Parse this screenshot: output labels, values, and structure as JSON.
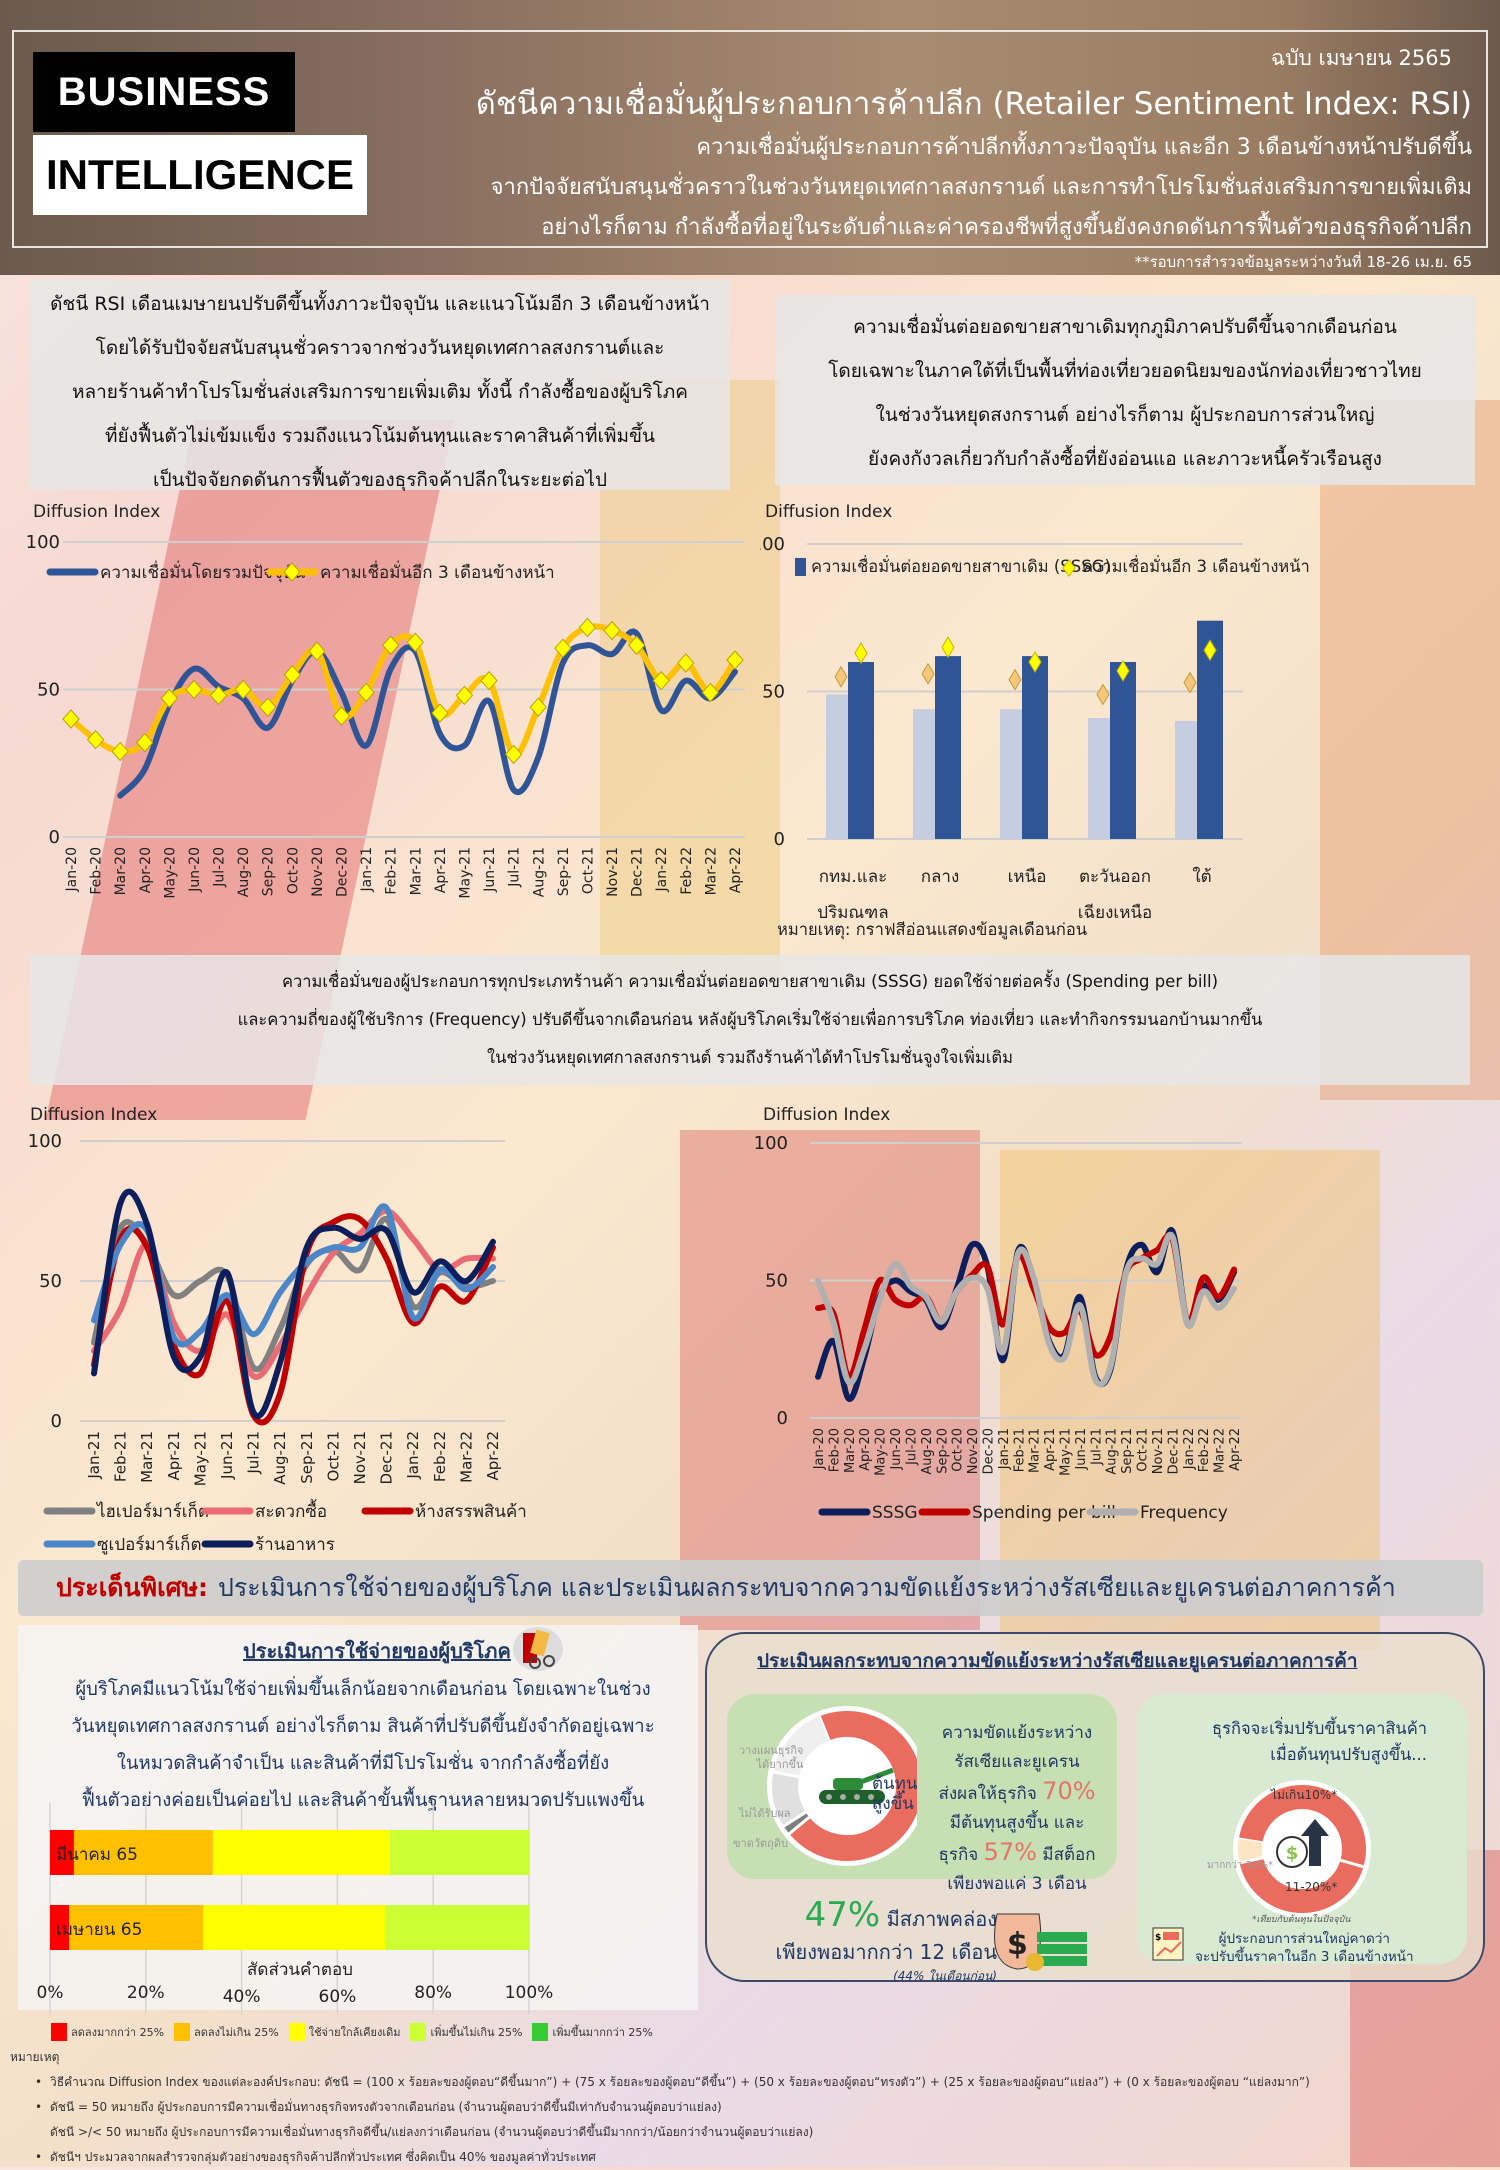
{
  "header": {
    "logo_line1": "BUSINESS",
    "logo_line2": "INTELLIGENCE",
    "issue": "ฉบับ เมษายน 2565",
    "title": "ดัชนีความเชื่อมั่นผู้ประกอบการค้าปลีก (Retailer Sentiment Index: RSI)",
    "subtitle_lines": [
      "ความเชื่อมั่นผู้ประกอบการค้าปลีกทั้งภาวะปัจจุบัน และอีก 3 เดือนข้างหน้าปรับดีขึ้น",
      "จากปัจจัยสนับสนุนชั่วคราวในช่วงวันหยุดเทศกาลสงกรานต์ และการทำโปรโมชั่นส่งเสริมการขายเพิ่มเติม",
      "อย่างไรก็ตาม กำลังซื้อที่อยู่ในระดับต่ำและค่าครองชีพที่สูงขึ้นยังคงกดดันการฟื้นตัวของธุรกิจค้าปลีก"
    ],
    "survey_note": "**รอบการสำรวจข้อมูลระหว่างวันที่ 18-26 เม.ย. 65"
  },
  "panels": {
    "rsi_summary": [
      "ดัชนี RSI เดือนเมษายนปรับดีขึ้นทั้งภาวะปัจจุบัน และแนวโน้มอีก 3 เดือนข้างหน้า",
      "โดยได้รับปัจจัยสนับสนุนชั่วคราวจากช่วงวันหยุดเทศกาลสงกรานต์และ",
      "หลายร้านค้าทำโปรโมชั่นส่งเสริมการขายเพิ่มเติม ทั้งนี้ กำลังซื้อของผู้บริโภค",
      "ที่ยังฟื้นตัวไม่เข้มแข็ง รวมถึงแนวโน้มต้นทุนและราคาสินค้าที่เพิ่มขึ้น",
      "เป็นปัจจัยกดดันการฟื้นตัวของธุรกิจค้าปลีกในระยะต่อไป"
    ],
    "regional_summary": [
      "ความเชื่อมั่นต่อยอดขายสาขาเดิมทุกภูมิภาคปรับดีขึ้นจากเดือนก่อน",
      "โดยเฉพาะในภาคใต้ที่เป็นพื้นที่ท่องเที่ยวยอดนิยมของนักท่องเที่ยวชาวไทย",
      "ในช่วงวันหยุดสงกรานต์ อย่างไรก็ตาม ผู้ประกอบการส่วนใหญ่",
      "ยังคงกังวลเกี่ยวกับกำลังซื้อที่ยังอ่อนแอ และภาวะหนี้ครัวเรือนสูง"
    ],
    "store_summary": [
      "ความเชื่อมั่นของผู้ประกอบการทุกประเภทร้านค้า ความเชื่อมั่นต่อยอดขายสาขาเดิม (SSSG) ยอดใช้จ่ายต่อครั้ง (Spending  per bill)",
      "และความถี่ของผู้ใช้บริการ (Frequency) ปรับดีขึ้นจากเดือนก่อน หลังผู้บริโภคเริ่มใช้จ่ายเพื่อการบริโภค ท่องเที่ยว และทำกิจกรรมนอกบ้านมากขึ้น",
      "ในช่วงวันหยุดเทศกาลสงกรานต์  รวมถึงร้านค้าได้ทำโปรโมชั่นจูงใจเพิ่มเติม"
    ]
  },
  "chart_data": [
    {
      "id": "rsi_line",
      "type": "line",
      "ylabel": "Diffusion Index",
      "ylim": [
        0,
        100
      ],
      "yticks": [
        0,
        50,
        100
      ],
      "grid": true,
      "legend_position": "top",
      "categories": [
        "Jan-20",
        "Feb-20",
        "Mar-20",
        "Apr-20",
        "May-20",
        "Jun-20",
        "Jul-20",
        "Aug-20",
        "Sep-20",
        "Oct-20",
        "Nov-20",
        "Dec-20",
        "Jan-21",
        "Feb-21",
        "Mar-21",
        "Apr-21",
        "May-21",
        "Jun-21",
        "Jul-21",
        "Aug-21",
        "Sep-21",
        "Oct-21",
        "Nov-21",
        "Dec-21",
        "Jan-22",
        "Feb-22",
        "Mar-22",
        "Apr-22"
      ],
      "series": [
        {
          "name": "ความเชื่อมั่นโดยรวมปัจจุบัน",
          "color": "#2f5597",
          "values": [
            null,
            null,
            14,
            23,
            45,
            57,
            51,
            47,
            37,
            53,
            63,
            49,
            31,
            57,
            63,
            35,
            31,
            46,
            16,
            27,
            59,
            65,
            62,
            69,
            43,
            53,
            47,
            56
          ]
        },
        {
          "name": "ความเชื่อมั่นอีก 3 เดือนข้างหน้า",
          "color": "#ffc000",
          "marker": "diamond",
          "values": [
            40,
            33,
            29,
            32,
            47,
            50,
            48,
            50,
            44,
            55,
            63,
            41,
            49,
            65,
            66,
            42,
            48,
            53,
            28,
            44,
            64,
            71,
            70,
            65,
            53,
            59,
            49,
            60
          ]
        }
      ]
    },
    {
      "id": "regional_bar",
      "type": "bar",
      "ylabel": "Diffusion Index",
      "ylim": [
        0,
        100
      ],
      "yticks": [
        0,
        50,
        100
      ],
      "grid": true,
      "legend_position": "top",
      "categories": [
        "กทม.และปริมณฑล",
        "กลาง",
        "เหนือ",
        "ตะวันออกเฉียงเหนือ",
        "ใต้"
      ],
      "category_lines": [
        [
          "กทม.และ",
          "ปริมณฑล"
        ],
        [
          "กลาง"
        ],
        [
          "เหนือ"
        ],
        [
          "ตะวันออก",
          "เฉียงเหนือ"
        ],
        [
          "ใต้"
        ]
      ],
      "series": [
        {
          "name": "ความเชื่อมั่นต่อยอดขายสาขาเดิม (SSSG) - เดือนก่อน",
          "color": "#c5cde0",
          "values": [
            49,
            44,
            44,
            41,
            40
          ]
        },
        {
          "name": "ความเชื่อมั่นต่อยอดขายสาขาเดิม (SSSG)",
          "color": "#2f5597",
          "values": [
            60,
            62,
            62,
            60,
            74
          ]
        },
        {
          "name": "ความเชื่อมั่นอีก 3 เดือนข้างหน้า - เดือนก่อน",
          "color": "#f4c77a",
          "marker": "diamond",
          "values": [
            55,
            56,
            54,
            49,
            53
          ]
        },
        {
          "name": "ความเชื่อมั่นอีก 3 เดือนข้างหน้า",
          "color": "#ffff00",
          "marker": "diamond",
          "values": [
            63,
            65,
            60,
            57,
            64
          ]
        }
      ],
      "legend": [
        "ความเชื่อมั่นต่อยอดขายสาขาเดิม (SSSG)",
        "ความเชื่อมั่นอีก 3 เดือนข้างหน้า"
      ],
      "note": "หมายเหตุ: กราฟสีอ่อนแสดงข้อมูลเดือนก่อน"
    },
    {
      "id": "store_type_line",
      "type": "line",
      "ylabel": "Diffusion Index",
      "ylim": [
        0,
        100
      ],
      "yticks": [
        0,
        50,
        100
      ],
      "grid": true,
      "legend_position": "bottom",
      "categories": [
        "Jan-21",
        "Feb-21",
        "Mar-21",
        "Apr-21",
        "May-21",
        "Jun-21",
        "Jul-21",
        "Aug-21",
        "Sep-21",
        "Oct-21",
        "Nov-21",
        "Dec-21",
        "Jan-22",
        "Feb-22",
        "Mar-22",
        "Apr-22"
      ],
      "series": [
        {
          "name": "ไฮเปอร์มาร์เก็ต",
          "color": "#808080",
          "values": [
            28,
            69,
            63,
            45,
            50,
            52,
            19,
            33,
            56,
            61,
            54,
            72,
            41,
            53,
            48,
            50
          ]
        },
        {
          "name": "สะดวกซื้อ",
          "color": "#e96c74",
          "values": [
            25,
            40,
            63,
            35,
            25,
            38,
            16,
            27,
            45,
            60,
            67,
            75,
            65,
            54,
            58,
            58
          ]
        },
        {
          "name": "ห้างสรรพสินค้า",
          "color": "#c00000",
          "values": [
            20,
            65,
            62,
            27,
            17,
            43,
            2,
            10,
            60,
            71,
            72,
            58,
            35,
            48,
            43,
            62
          ]
        },
        {
          "name": "ซูเปอร์มาร์เก็ต",
          "color": "#4a86c8",
          "values": [
            36,
            63,
            68,
            30,
            32,
            45,
            31,
            46,
            57,
            62,
            62,
            76,
            37,
            54,
            47,
            55
          ]
        },
        {
          "name": "ร้านอาหาร",
          "color": "#0c1f5c",
          "values": [
            17,
            78,
            70,
            23,
            23,
            53,
            3,
            21,
            62,
            69,
            65,
            68,
            46,
            57,
            50,
            64
          ]
        }
      ]
    },
    {
      "id": "sssg_line",
      "type": "line",
      "ylabel": "Diffusion Index",
      "ylim": [
        0,
        100
      ],
      "yticks": [
        0,
        50,
        100
      ],
      "grid": true,
      "legend_position": "bottom",
      "categories": [
        "Jan-20",
        "Feb-20",
        "Mar-20",
        "Apr-20",
        "May-20",
        "Jun-20",
        "Jul-20",
        "Aug-20",
        "Sep-20",
        "Oct-20",
        "Nov-20",
        "Dec-20",
        "Jan-21",
        "Feb-21",
        "Mar-21",
        "Apr-21",
        "May-21",
        "Jun-21",
        "Jul-21",
        "Aug-21",
        "Sep-21",
        "Oct-21",
        "Nov-21",
        "Dec-21",
        "Jan-22",
        "Feb-22",
        "Mar-22",
        "Apr-22"
      ],
      "series": [
        {
          "name": "SSSG",
          "color": "#0c1f5c",
          "values": [
            15,
            28,
            7,
            22,
            44,
            50,
            46,
            43,
            33,
            47,
            63,
            55,
            21,
            61,
            50,
            28,
            23,
            44,
            15,
            18,
            54,
            63,
            53,
            68,
            34,
            48,
            43,
            53
          ]
        },
        {
          "name": "Spending per bill",
          "color": "#c00000",
          "values": [
            40,
            38,
            15,
            32,
            50,
            43,
            41,
            44,
            35,
            46,
            52,
            55,
            34,
            59,
            47,
            33,
            31,
            39,
            23,
            30,
            53,
            58,
            61,
            65,
            35,
            51,
            44,
            54
          ]
        },
        {
          "name": "Frequency",
          "color": "#b0b0b0",
          "values": [
            50,
            35,
            13,
            25,
            43,
            56,
            48,
            44,
            35,
            46,
            51,
            47,
            24,
            60,
            51,
            27,
            22,
            41,
            14,
            19,
            53,
            58,
            56,
            66,
            34,
            46,
            40,
            47
          ]
        }
      ]
    },
    {
      "id": "consumer_spending_bar",
      "type": "bar",
      "orientation": "horizontal",
      "stacked": true,
      "xlabel": "สัดส่วนคำตอบ",
      "xlim": [
        0,
        100
      ],
      "xticks": [
        "0%",
        "20%",
        "40%",
        "60%",
        "80%",
        "100%"
      ],
      "categories": [
        "มีนาคม 65",
        "เมษายน 65"
      ],
      "series": [
        {
          "name": "ลดลงมากกว่า 25%",
          "color": "#ff0000",
          "values": [
            5,
            4
          ]
        },
        {
          "name": "ลดลงไม่เกิน 25%",
          "color": "#ffc000",
          "values": [
            29,
            28
          ]
        },
        {
          "name": "ใช้จ่ายใกล้เคียงเดิม",
          "color": "#ffff00",
          "values": [
            37,
            38
          ]
        },
        {
          "name": "เพิ่มขึ้นไม่เกิน 25%",
          "color": "#ccff33",
          "values": [
            29,
            30
          ]
        },
        {
          "name": "เพิ่มขึ้นมากกว่า 25%",
          "color": "#33cc33",
          "values": [
            0,
            0
          ]
        }
      ]
    }
  ],
  "special": {
    "label": "ประเด็นพิเศษ:",
    "title": "ประเมินการใช้จ่ายของผู้บริโภค และประเมินผลกระทบจากความขัดแย้งระหว่างรัสเซียและยูเครนต่อภาคการค้า"
  },
  "consumer": {
    "title": "ประเมินการใช้จ่ายของผู้บริโภค",
    "body": [
      "ผู้บริโภคมีแนวโน้มใช้จ่ายเพิ่มขึ้นเล็กน้อยจากเดือนก่อน โดยเฉพาะในช่วง",
      "วันหยุดเทศกาลสงกรานต์ อย่างไรก็ตาม สินค้าที่ปรับดีขึ้นยังจำกัดอยู่เฉพาะ",
      "ในหมวดสินค้าจำเป็น และสินค้าที่มีโปรโมชั่น จากกำลังซื้อที่ยัง",
      "ฟื้นตัวอย่างค่อยเป็นค่อยไป และสินค้าขั้นพื้นฐานหลายหมวดปรับแพงขึ้น"
    ]
  },
  "war": {
    "title": "ประเมินผลกระทบจากความขัดแย้งระหว่างรัสเซียและยูเครนต่อภาคการค้า",
    "donut1": {
      "center": [
        "ต้นทุน",
        "สูงขึ้น"
      ],
      "labels": [
        "วางแผนธุรกิจ",
        "ได้ยากขึ้น",
        "ไม่ได้รับผล",
        "ขาดวัตถุดิบ"
      ],
      "segments": [
        {
          "name": "ต้นทุนสูงขึ้น",
          "value": 70,
          "color": "#e96c5e"
        },
        {
          "name": "ขาดวัตถุดิบ",
          "value": 2,
          "color": "#7f7f7f"
        },
        {
          "name": "ไม่ได้รับผล",
          "value": 12,
          "color": "#e0e0e0"
        },
        {
          "name": "วางแผนธุรกิจได้ยากขึ้น",
          "value": 16,
          "color": "#efefef"
        }
      ]
    },
    "stat1": {
      "l1": "ความขัดแย้งระหว่าง",
      "l2": "รัสเซียและยูเครน",
      "l3": "ส่งผลให้ธุรกิจ",
      "p1": "70%",
      "l4": "มีต้นทุนสูงขึ้น และ",
      "l5a": "ธุรกิจ",
      "p2": "57%",
      "l5b": "มีสต็อก",
      "l6": "เพียงพอแค่ 3 เดือน"
    },
    "liquidity": {
      "pct": "47%",
      "l1": "มีสภาพคล่อง",
      "l2": "เพียงพอมากกว่า 12 เดือน",
      "prev": "(44% ในเดือนก่อน)"
    },
    "price": {
      "title1": "ธุรกิจจะเริ่มปรับขึ้นราคาสินค้า",
      "title2": "เมื่อต้นทุนปรับสูงขึ้น...",
      "label_a": "ไม่เกิน10%*",
      "label_b": "11-20%*",
      "label_c": "มากกว่า 20%*",
      "footnote": "*เทียบกับต้นทุนในปัจจุบัน",
      "conclusion1": "ผู้ประกอบการส่วนใหญ่คาดว่า",
      "conclusion2": "จะปรับขึ้นราคาในอีก 3 เดือนข้างหน้า",
      "segments": [
        {
          "name": "ไม่เกิน10%",
          "value": 52,
          "color": "#e96c5e"
        },
        {
          "name": "11-20%",
          "value": 42,
          "color": "#e96c5e"
        },
        {
          "name": "มากกว่า 20%",
          "value": 6,
          "color": "#fbe5c3"
        }
      ]
    }
  },
  "notes": {
    "heading": "หมายเหตุ",
    "items": [
      "วิธีคำนวณ Diffusion Index ของแต่ละองค์ประกอบ: ดัชนี = (100 x ร้อยละของผู้ตอบ“ดีขึ้นมาก”) + (75 x ร้อยละของผู้ตอบ“ดีขึ้น”) + (50 x ร้อยละของผู้ตอบ“ทรงตัว”) + (25 x ร้อยละของผู้ตอบ“แย่ลง”) + (0 x ร้อยละของผู้ตอบ “แย่ลงมาก”)",
      "ดัชนี = 50 หมายถึง ผู้ประกอบการมีความเชื่อมั่นทางธุรกิจทรงตัวจากเดือนก่อน  (จำนวนผู้ตอบว่าดีขึ้นมีเท่ากับจำนวนผู้ตอบว่าแย่ลง)",
      "ดัชนี >/< 50 หมายถึง ผู้ประกอบการมีความเชื่อมั่นทางธุรกิจดีขึ้น/แย่ลงกว่าเดือนก่อน  (จำนวนผู้ตอบว่าดีขึ้นมีมากกว่า/น้อยกว่าจำนวนผู้ตอบว่าแย่ลง)",
      "ดัชนีฯ ประมวลจากผลสำรวจกลุ่มตัวอย่างของธุรกิจค้าปลีกทั่วประเทศ ซึ่งคิดเป็น 40% ของมูลค่าทั่วประเทศ"
    ]
  }
}
